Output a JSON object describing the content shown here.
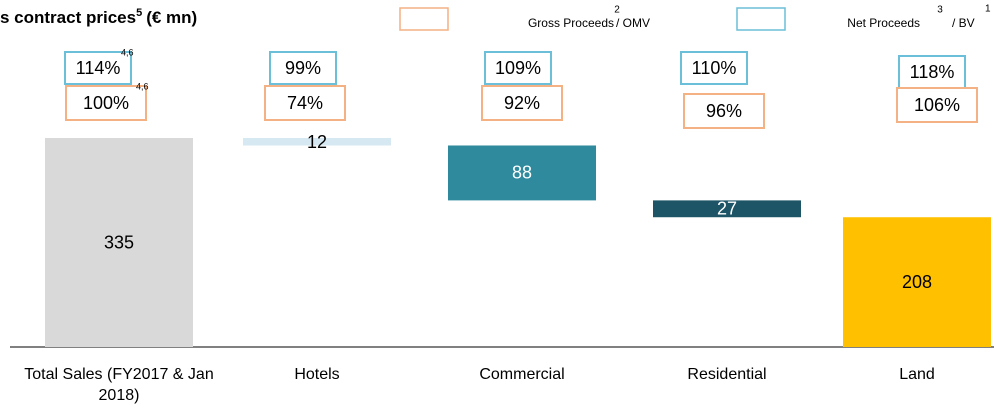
{
  "chart_data": {
    "type": "waterfall",
    "title": "s contract prices",
    "title_superscript": "5",
    "title_suffix": "(€ mn)",
    "categories": [
      "Total Sales  (FY2017 & Jan 2018)",
      "Hotels",
      "Commercial",
      "Residential",
      "Land"
    ],
    "values": [
      335,
      12,
      88,
      27,
      208
    ],
    "measures": [
      "total",
      "decrease",
      "decrease",
      "decrease",
      "total"
    ],
    "colors": [
      "#d9d9d9",
      "#d6e9f2",
      "#2e8a9c",
      "#1d5566",
      "#ffc000"
    ],
    "label_colors": [
      "#000000",
      "#000000",
      "#ffffff",
      "#ffffff",
      "#000000"
    ],
    "ratio_series": [
      {
        "name": "Net Proceeds",
        "superscript": "3",
        "suffix": "/ BV",
        "suffix_superscript": "1",
        "color": "#6bbfd8",
        "values": [
          114,
          99,
          109,
          110,
          118
        ],
        "value_labels": [
          "114%",
          "99%",
          "109%",
          "110%",
          "118%"
        ],
        "label_superscripts": [
          "4,6",
          null,
          null,
          null,
          null
        ]
      },
      {
        "name": "Gross Proceeds",
        "superscript": "2",
        "suffix": "/ OMV",
        "suffix_superscript": null,
        "color": "#f4b183",
        "values": [
          100,
          74,
          92,
          96,
          106
        ],
        "value_labels": [
          "100%",
          "74%",
          "92%",
          "96%",
          "106%"
        ],
        "label_superscripts": [
          "4,6",
          null,
          null,
          null,
          null
        ]
      }
    ]
  }
}
